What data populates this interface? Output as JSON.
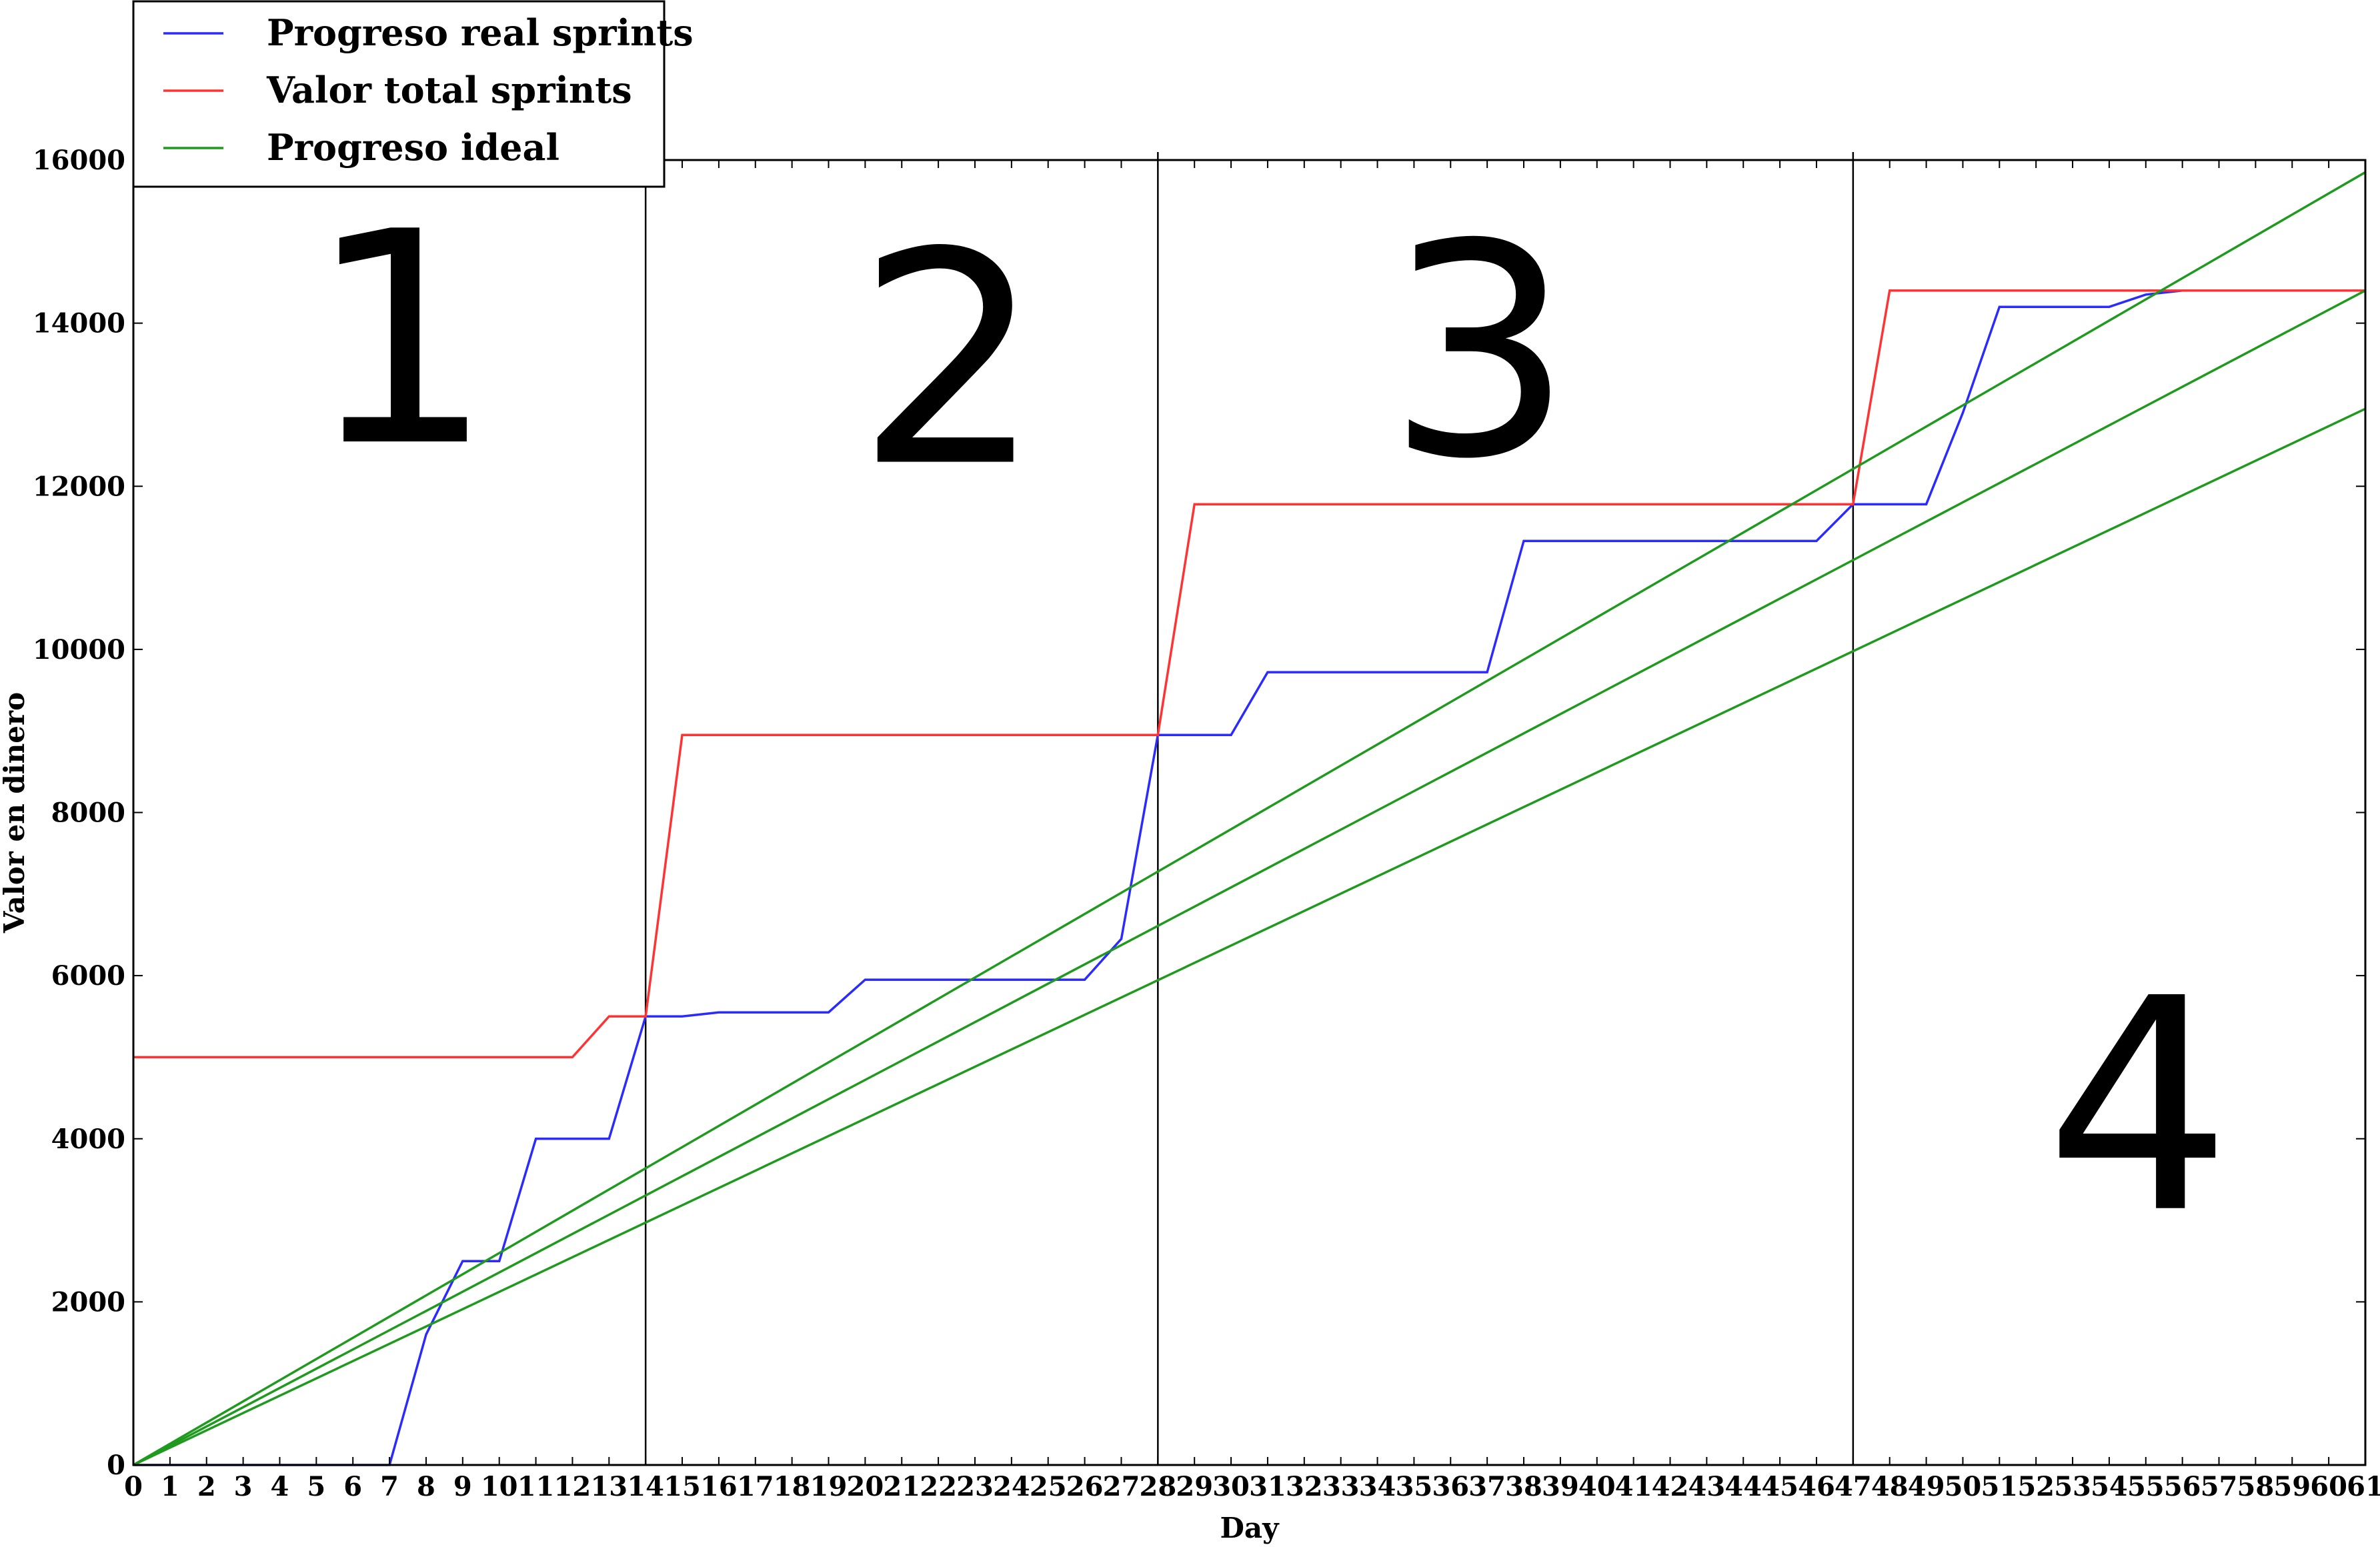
{
  "chart_data": {
    "type": "line",
    "title": "",
    "xlabel": "Day",
    "ylabel": "Valor en dinero",
    "xlim": [
      0,
      61
    ],
    "ylim": [
      0,
      16000
    ],
    "x_ticks": [
      0,
      1,
      2,
      3,
      4,
      5,
      6,
      7,
      8,
      9,
      10,
      11,
      12,
      13,
      14,
      15,
      16,
      17,
      18,
      19,
      20,
      21,
      22,
      23,
      24,
      25,
      26,
      27,
      28,
      29,
      30,
      31,
      32,
      33,
      34,
      35,
      36,
      37,
      38,
      39,
      40,
      41,
      42,
      43,
      44,
      45,
      46,
      47,
      48,
      49,
      50,
      51,
      52,
      53,
      54,
      55,
      56,
      57,
      58,
      59,
      60,
      61
    ],
    "y_ticks": [
      0,
      2000,
      4000,
      6000,
      8000,
      10000,
      12000,
      14000,
      16000
    ],
    "grid": false,
    "legend_position": "top-left",
    "series": [
      {
        "name": "Progreso real sprints",
        "color": "#2b2bff",
        "x": [
          0,
          7,
          8,
          9,
          10,
          11,
          12,
          13,
          14,
          15,
          16,
          17,
          18,
          19,
          20,
          21,
          22,
          23,
          24,
          25,
          26,
          27,
          28,
          29,
          30,
          31,
          37,
          38,
          45,
          46,
          47,
          48,
          49,
          50,
          51,
          52,
          53,
          54,
          55,
          56,
          61
        ],
        "y": [
          0,
          0,
          1600,
          2500,
          2500,
          4000,
          4000,
          4000,
          5500,
          5500,
          5550,
          5550,
          5550,
          5550,
          5950,
          5950,
          5950,
          5950,
          5950,
          5950,
          5950,
          6450,
          8950,
          8950,
          8950,
          9720,
          9720,
          11330,
          11330,
          11330,
          11780,
          11780,
          11780,
          12900,
          14200,
          14200,
          14200,
          14200,
          14350,
          14400,
          14400
        ]
      },
      {
        "name": "Valor total sprints",
        "color": "#ff3333",
        "x": [
          0,
          12,
          13,
          14,
          15,
          28,
          29,
          47,
          48,
          61
        ],
        "y": [
          5000,
          5000,
          5500,
          5500,
          8950,
          8950,
          11780,
          11780,
          14400,
          14400
        ]
      },
      {
        "name": "Progreso ideal",
        "color": "#1f9a1f",
        "x": [
          0,
          61
        ],
        "y": [
          0,
          15850
        ]
      },
      {
        "name": "",
        "color": "#1f9a1f",
        "x": [
          0,
          61
        ],
        "y": [
          0,
          14400
        ]
      },
      {
        "name": "",
        "color": "#1f9a1f",
        "x": [
          0,
          61
        ],
        "y": [
          0,
          12950
        ]
      }
    ],
    "vertical_lines": [
      14,
      28,
      47
    ],
    "sprint_labels": [
      {
        "text": "1",
        "x": 7.3,
        "y": 12550
      },
      {
        "text": "2",
        "x": 22.3,
        "y": 12300
      },
      {
        "text": "3",
        "x": 36.8,
        "y": 12400
      },
      {
        "text": "4",
        "x": 54.8,
        "y": 3150
      }
    ],
    "legend": [
      "Progreso real sprints",
      "Valor total sprints",
      "Progreso ideal"
    ]
  }
}
